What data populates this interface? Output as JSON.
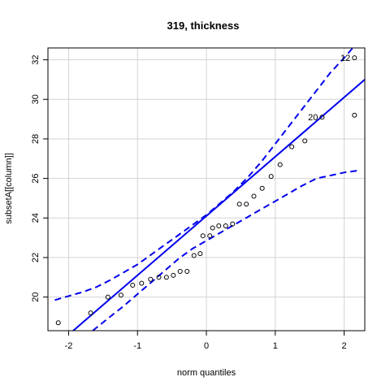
{
  "chart_data": {
    "type": "scatter",
    "title": "319, thickness",
    "xlabel": "norm quantiles",
    "ylabel": "subsetA[[column]]",
    "xlim": [
      -2.3,
      2.3
    ],
    "ylim": [
      18.3,
      32.6
    ],
    "xticks": [
      -2,
      -1,
      0,
      1,
      2
    ],
    "yticks": [
      20,
      22,
      24,
      26,
      28,
      30,
      32
    ],
    "grid": true,
    "colors": {
      "line": "#0000ee",
      "points": "#000000",
      "grid": "#d3d3d3",
      "frame": "#000000"
    },
    "points": [
      {
        "x": -2.15,
        "y": 18.7
      },
      {
        "x": -1.68,
        "y": 19.2
      },
      {
        "x": -1.43,
        "y": 20.0
      },
      {
        "x": -1.24,
        "y": 20.1
      },
      {
        "x": -1.07,
        "y": 20.6
      },
      {
        "x": -0.94,
        "y": 20.7
      },
      {
        "x": -0.81,
        "y": 20.9
      },
      {
        "x": -0.69,
        "y": 21.0
      },
      {
        "x": -0.58,
        "y": 21.0
      },
      {
        "x": -0.48,
        "y": 21.1
      },
      {
        "x": -0.38,
        "y": 21.3
      },
      {
        "x": -0.28,
        "y": 21.3
      },
      {
        "x": -0.18,
        "y": 22.1
      },
      {
        "x": -0.09,
        "y": 22.2
      },
      {
        "x": -0.05,
        "y": 23.1
      },
      {
        "x": 0.05,
        "y": 23.1
      },
      {
        "x": 0.09,
        "y": 23.5
      },
      {
        "x": 0.18,
        "y": 23.6
      },
      {
        "x": 0.28,
        "y": 23.6
      },
      {
        "x": 0.38,
        "y": 23.7
      },
      {
        "x": 0.48,
        "y": 24.7
      },
      {
        "x": 0.58,
        "y": 24.7
      },
      {
        "x": 0.69,
        "y": 25.1
      },
      {
        "x": 0.81,
        "y": 25.5
      },
      {
        "x": 0.94,
        "y": 26.1
      },
      {
        "x": 1.07,
        "y": 26.7
      },
      {
        "x": 1.24,
        "y": 27.6
      },
      {
        "x": 1.43,
        "y": 27.9
      },
      {
        "x": 1.68,
        "y": 29.1,
        "label": "20"
      },
      {
        "x": 2.15,
        "y": 29.2
      },
      {
        "x": 2.15,
        "y": 32.1,
        "label": "12"
      }
    ],
    "reference_line": {
      "intercept": 24.1,
      "slope": 3.0
    },
    "upper_band": [
      {
        "x": -2.2,
        "y": 19.85
      },
      {
        "x": -2.0,
        "y": 20.05
      },
      {
        "x": -1.8,
        "y": 20.25
      },
      {
        "x": -1.6,
        "y": 20.5
      },
      {
        "x": -1.4,
        "y": 20.85
      },
      {
        "x": -1.2,
        "y": 21.25
      },
      {
        "x": -1.0,
        "y": 21.65
      },
      {
        "x": -0.8,
        "y": 22.15
      },
      {
        "x": -0.6,
        "y": 22.65
      },
      {
        "x": -0.4,
        "y": 23.15
      },
      {
        "x": -0.2,
        "y": 23.65
      },
      {
        "x": 0.0,
        "y": 24.15
      },
      {
        "x": 0.2,
        "y": 24.75
      },
      {
        "x": 0.4,
        "y": 25.35
      },
      {
        "x": 0.6,
        "y": 26.05
      },
      {
        "x": 0.8,
        "y": 26.85
      },
      {
        "x": 1.0,
        "y": 27.75
      },
      {
        "x": 1.2,
        "y": 28.65
      },
      {
        "x": 1.4,
        "y": 29.55
      },
      {
        "x": 1.6,
        "y": 30.45
      },
      {
        "x": 1.8,
        "y": 31.35
      },
      {
        "x": 2.0,
        "y": 32.1
      },
      {
        "x": 2.2,
        "y": 32.9
      }
    ],
    "lower_band": [
      {
        "x": -1.65,
        "y": 18.3
      },
      {
        "x": -1.4,
        "y": 19.0
      },
      {
        "x": -1.2,
        "y": 19.55
      },
      {
        "x": -1.0,
        "y": 20.15
      },
      {
        "x": -0.8,
        "y": 20.75
      },
      {
        "x": -0.6,
        "y": 21.35
      },
      {
        "x": -0.4,
        "y": 21.95
      },
      {
        "x": -0.2,
        "y": 22.45
      },
      {
        "x": 0.0,
        "y": 22.85
      },
      {
        "x": 0.2,
        "y": 23.25
      },
      {
        "x": 0.4,
        "y": 23.65
      },
      {
        "x": 0.6,
        "y": 24.05
      },
      {
        "x": 0.8,
        "y": 24.45
      },
      {
        "x": 1.0,
        "y": 24.85
      },
      {
        "x": 1.2,
        "y": 25.25
      },
      {
        "x": 1.4,
        "y": 25.65
      },
      {
        "x": 1.6,
        "y": 26.0
      },
      {
        "x": 1.8,
        "y": 26.15
      },
      {
        "x": 2.0,
        "y": 26.3
      },
      {
        "x": 2.2,
        "y": 26.4
      }
    ]
  }
}
